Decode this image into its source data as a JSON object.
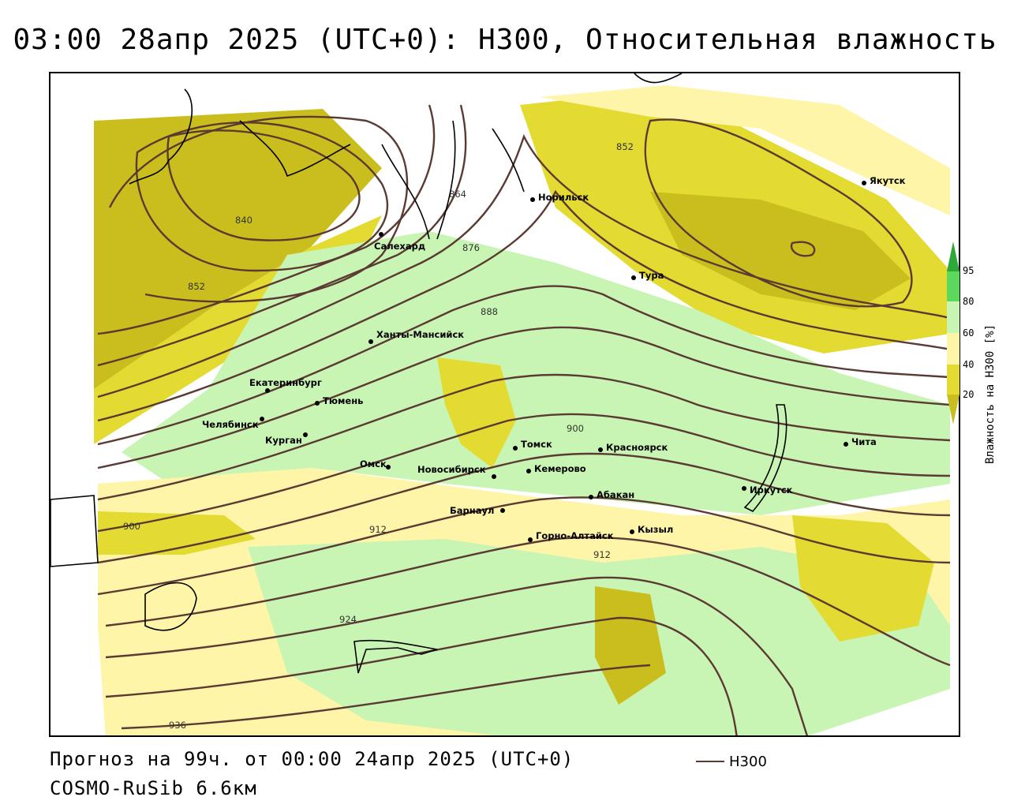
{
  "title": "03:00 28апр 2025 (UTC+0): H300, Относительная влажность",
  "footer": {
    "forecast": "Прогноз на 99ч. от 00:00 24апр 2025 (UTC+0)",
    "model": "COSMO-RuSib 6.6км"
  },
  "legend": {
    "label": "H300",
    "color": "#5a3a32"
  },
  "colorbar": {
    "label": "Влажность на H300 [%]",
    "ticks": [
      "95",
      "80",
      "60",
      "40",
      "20"
    ],
    "colors": {
      "c20": "#c9be1e",
      "c20_40": "#e3da32",
      "c40_60": "#fff5a8",
      "c60_80": "#c8f5b4",
      "c80_95": "#5cd85c",
      "c95": "#2fa83a"
    }
  },
  "contour_labels": [
    "840",
    "852",
    "852",
    "864",
    "876",
    "888",
    "900",
    "900",
    "912",
    "912",
    "924",
    "936"
  ],
  "cities": [
    "Якутск",
    "Норильск",
    "Салехард",
    "Тура",
    "Ханты-Мансийск",
    "Екатеринбург",
    "Тюмень",
    "Челябинск",
    "Курган",
    "Омск",
    "Томск",
    "Красноярск",
    "Новосибирск",
    "Кемерово",
    "Абакан",
    "Иркутск",
    "Чита",
    "Барнаул",
    "Горно-Алтайск",
    "Кызыл"
  ]
}
